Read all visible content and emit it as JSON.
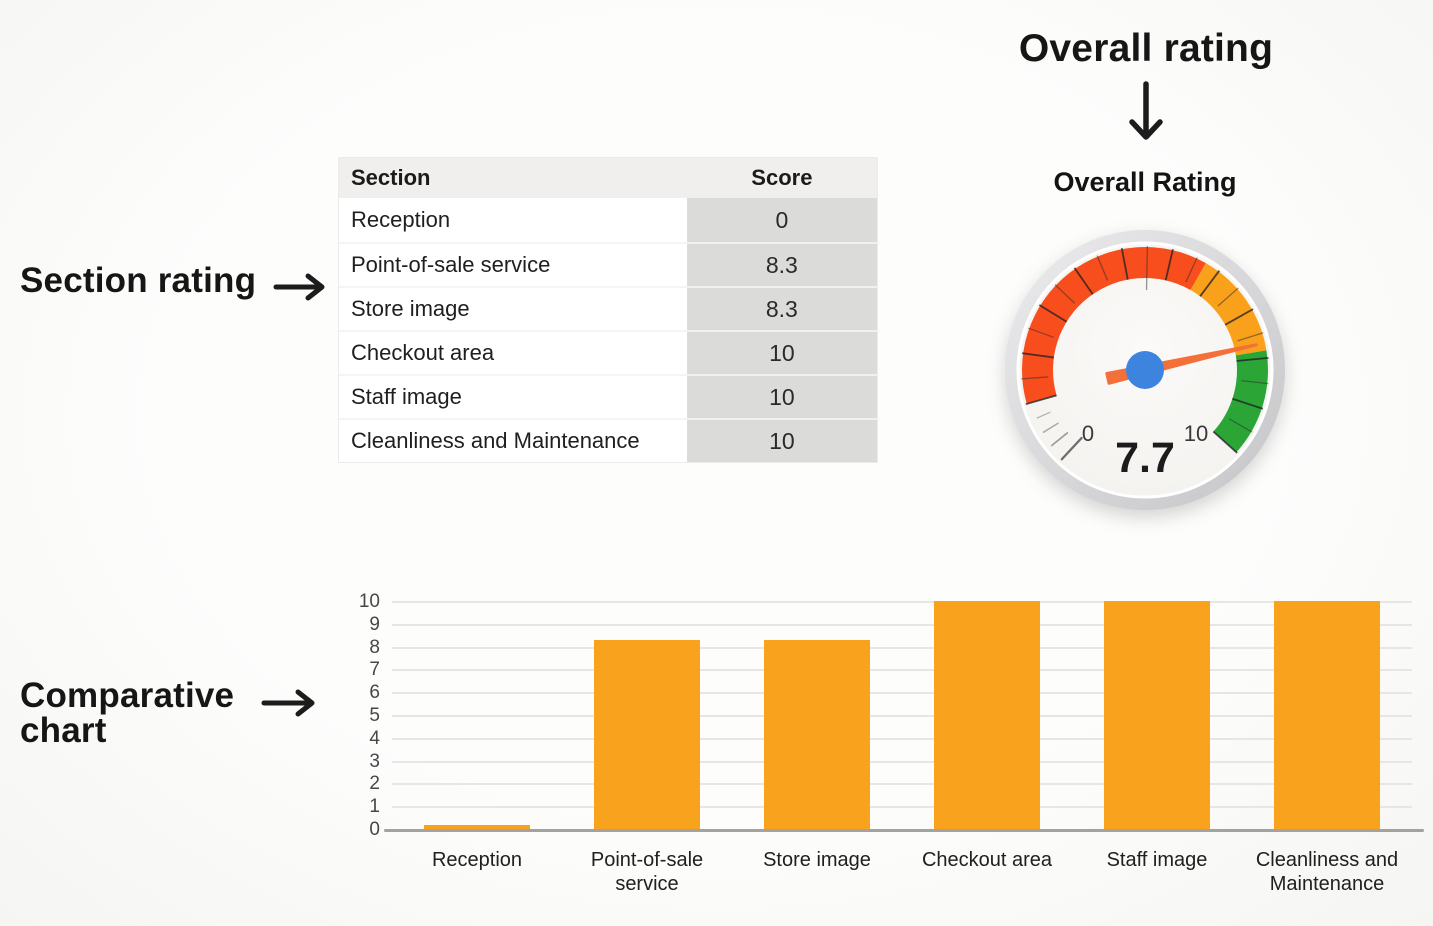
{
  "page": {
    "background": "#FCFCFB"
  },
  "annotations": {
    "section_rating": {
      "label": "Section rating"
    },
    "overall_rating_heading": {
      "label": "Overall rating"
    },
    "comparative_chart": {
      "label": "Comparative chart"
    }
  },
  "table": {
    "columns": [
      "Section",
      "Score"
    ],
    "rows": [
      {
        "section": "Reception",
        "score": "0"
      },
      {
        "section": "Point-of-sale service",
        "score": "8.3"
      },
      {
        "section": "Store image",
        "score": "8.3"
      },
      {
        "section": "Checkout area",
        "score": "10"
      },
      {
        "section": "Staff image",
        "score": "10"
      },
      {
        "section": "Cleanliness and Maintenance",
        "score": "10"
      }
    ]
  },
  "gauge": {
    "title": "Overall Rating",
    "value": 7.7,
    "value_label": "7.7",
    "min": 0,
    "max": 10,
    "min_label": "0",
    "max_label": "10",
    "segments": [
      {
        "name": "low",
        "from": 0,
        "to": 5.7,
        "color": "#F84D1C"
      },
      {
        "name": "mid",
        "from": 5.7,
        "to": 7.85,
        "color": "#F9A11B"
      },
      {
        "name": "high",
        "from": 7.85,
        "to": 10,
        "color": "#2BA636"
      }
    ],
    "needle_color": "#F4703A",
    "hub_color": "#3D84DE"
  },
  "chart_data": {
    "type": "bar",
    "title": "",
    "xlabel": "",
    "ylabel": "",
    "categories": [
      "Reception",
      "Point-of-sale service",
      "Store image",
      "Checkout area",
      "Staff image",
      "Cleanliness and Maintenance"
    ],
    "values": [
      0,
      8.3,
      8.3,
      10,
      10,
      10
    ],
    "bar_color": "#F9A21D",
    "ylim": [
      0,
      10
    ],
    "yticks": [
      0,
      1,
      2,
      3,
      4,
      5,
      6,
      7,
      8,
      9,
      10
    ],
    "grid": true,
    "legend": false
  }
}
